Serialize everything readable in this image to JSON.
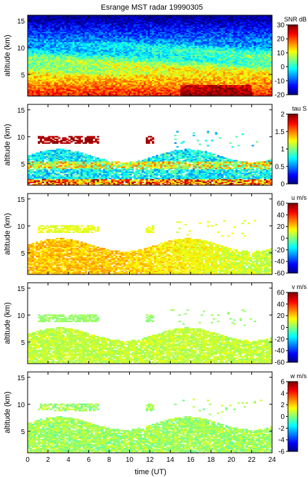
{
  "title": "Esrange MST radar 19990305",
  "x_axis": {
    "label": "time (UT)",
    "range": [
      0,
      24
    ],
    "ticks": [
      "0",
      "2",
      "4",
      "6",
      "8",
      "10",
      "12",
      "14",
      "16",
      "18",
      "20",
      "22",
      "24"
    ]
  },
  "chart_data": [
    {
      "type": "heatmap",
      "quantity": "snr",
      "ylabel": "altitude (km)",
      "ylim": [
        1,
        16
      ],
      "yticks": [
        "5",
        "10",
        "15"
      ],
      "xlim": [
        0,
        24
      ],
      "colorbar": {
        "label": "SNR dB",
        "range": [
          -20,
          30
        ],
        "ticks": [
          "-20",
          "-10",
          "0",
          "10",
          "20",
          "30"
        ]
      }
    },
    {
      "type": "heatmap",
      "quantity": "tau",
      "ylabel": "altitude (km)",
      "ylim": [
        1,
        16
      ],
      "yticks": [
        "5",
        "10",
        "15"
      ],
      "xlim": [
        0,
        24
      ],
      "colorbar": {
        "label": "tau S",
        "range": [
          0,
          2
        ],
        "ticks": [
          "0",
          "0.5",
          "1",
          "1.5",
          "2"
        ]
      }
    },
    {
      "type": "heatmap",
      "quantity": "u",
      "ylabel": "altitude (km)",
      "ylim": [
        1,
        16
      ],
      "yticks": [
        "5",
        "10",
        "15"
      ],
      "xlim": [
        0,
        24
      ],
      "colorbar": {
        "label": "u m/s",
        "range": [
          -60,
          60
        ],
        "ticks": [
          "-60",
          "-40",
          "-20",
          "0",
          "20",
          "40",
          "60"
        ]
      }
    },
    {
      "type": "heatmap",
      "quantity": "v",
      "ylabel": "altitude (km)",
      "ylim": [
        1,
        16
      ],
      "yticks": [
        "5",
        "10",
        "15"
      ],
      "xlim": [
        0,
        24
      ],
      "colorbar": {
        "label": "v m/s",
        "range": [
          -60,
          60
        ],
        "ticks": [
          "-60",
          "-40",
          "-20",
          "0",
          "20",
          "40",
          "60"
        ]
      }
    },
    {
      "type": "heatmap",
      "quantity": "w",
      "ylabel": "altitude (km)",
      "ylim": [
        1,
        16
      ],
      "yticks": [
        "5",
        "10",
        "15"
      ],
      "xlim": [
        0,
        24
      ],
      "colorbar": {
        "label": "w m/s",
        "range": [
          -6,
          6
        ],
        "ticks": [
          "-6",
          "-4",
          "-2",
          "0",
          "2",
          "4",
          "6"
        ]
      }
    }
  ]
}
